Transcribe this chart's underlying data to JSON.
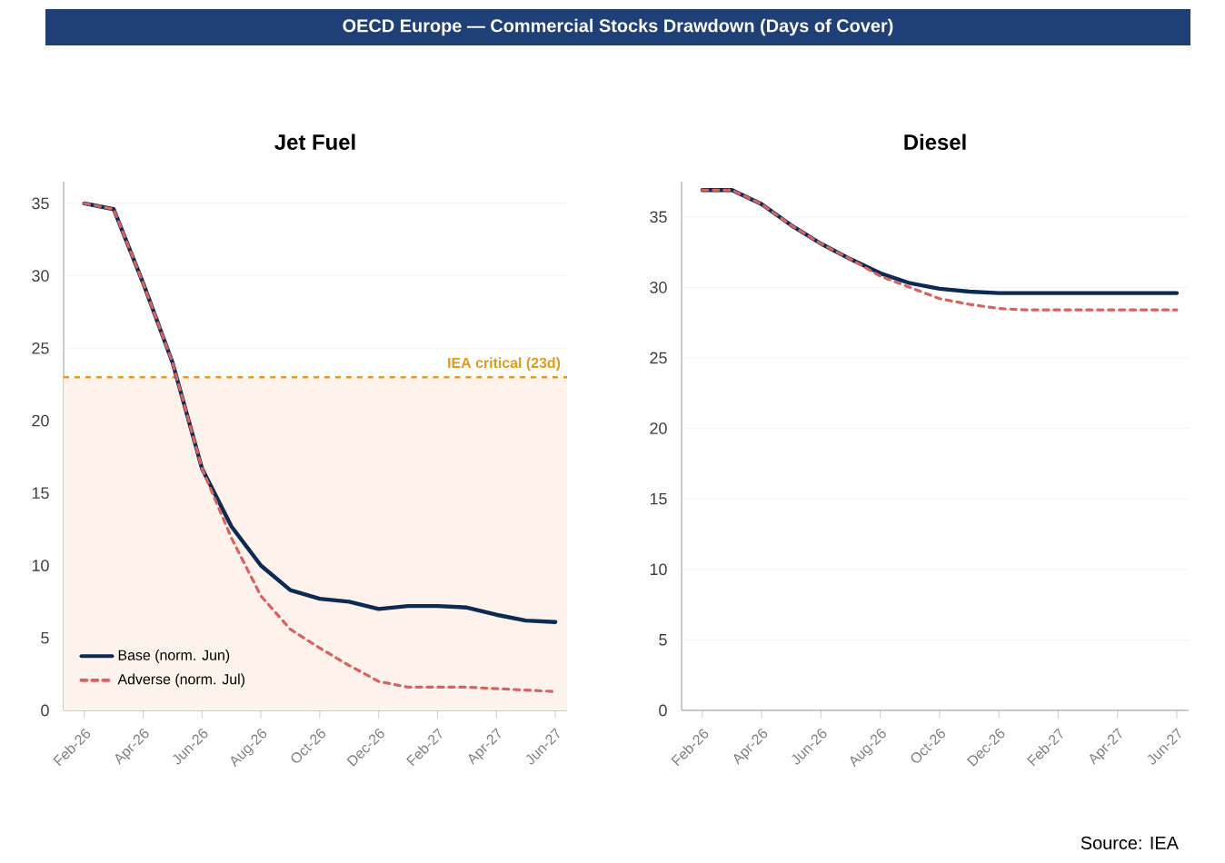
{
  "chart_data": [
    {
      "type": "other",
      "title": "OECD Europe — Commercial Stocks Drawdown (Days of Cover)",
      "annotations": [
        "Source: IEA"
      ]
    },
    {
      "type": "line",
      "title": "Jet Fuel",
      "categories": [
        "Feb-26",
        null,
        "Apr-26",
        null,
        "Jun-26",
        null,
        "Aug-26",
        null,
        "Oct-26",
        null,
        "Dec-26",
        null,
        "Feb-27",
        null,
        "Apr-27",
        null,
        "Jun-27"
      ],
      "series": [
        {
          "name": "Base (norm. Jun)",
          "color": "#0d2b52",
          "line_style": "solid",
          "values": [
            35,
            34.6,
            29.5,
            24.0,
            16.7,
            12.7,
            10.0,
            8.3,
            7.7,
            7.5,
            7.0,
            7.2,
            7.2,
            7.1,
            6.6,
            6.2,
            6.1
          ]
        },
        {
          "name": "Adverse (norm. Jul)",
          "color": "#d9615f",
          "line_style": "dashed",
          "values": [
            35,
            34.6,
            29.5,
            24.0,
            16.7,
            11.9,
            7.9,
            5.6,
            4.3,
            3.1,
            2.0,
            1.6,
            1.6,
            1.6,
            1.5,
            1.4,
            1.3
          ]
        }
      ],
      "ylim": [
        0,
        36.5
      ],
      "yticks": [
        0,
        5,
        10,
        15,
        20,
        25,
        30,
        35
      ],
      "grid": "y",
      "legend": "bottom left",
      "ref_lines": [
        {
          "axis": "y",
          "value": 23,
          "label": "IEA critical (23d)",
          "color": "#e29a1c",
          "line_style": "dashed"
        }
      ],
      "bands": [
        {
          "axis": "y",
          "from": 0,
          "to": 23,
          "color": "#fdf3ec"
        }
      ]
    },
    {
      "type": "line",
      "title": "Diesel",
      "categories": [
        "Feb-26",
        null,
        "Apr-26",
        null,
        "Jun-26",
        null,
        "Aug-26",
        null,
        "Oct-26",
        null,
        "Dec-26",
        null,
        "Feb-27",
        null,
        "Apr-27",
        null,
        "Jun-27"
      ],
      "series": [
        {
          "color": "#0d2b52",
          "line_style": "solid",
          "values": [
            36.9,
            36.9,
            35.9,
            34.4,
            33.1,
            32.0,
            31.0,
            30.3,
            29.9,
            29.7,
            29.6,
            29.6,
            29.6,
            29.6,
            29.6,
            29.6,
            29.6
          ]
        },
        {
          "color": "#d9615f",
          "line_style": "dashed",
          "values": [
            36.9,
            36.9,
            35.9,
            34.4,
            33.1,
            32.0,
            30.8,
            30.0,
            29.2,
            28.8,
            28.5,
            28.4,
            28.4,
            28.4,
            28.4,
            28.4,
            28.4
          ]
        }
      ],
      "ylim": [
        0,
        37.5
      ],
      "yticks": [
        0,
        5,
        10,
        15,
        20,
        25,
        30,
        35
      ],
      "grid": "y",
      "legend": false
    }
  ]
}
